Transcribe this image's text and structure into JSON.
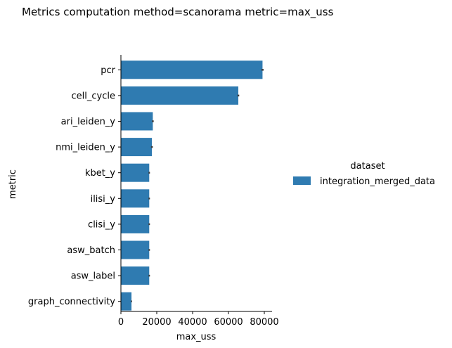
{
  "chart_data": {
    "type": "bar",
    "orientation": "horizontal",
    "title": "Metrics computation method=scanorama metric=max_uss",
    "xlabel": "max_uss",
    "ylabel": "metric",
    "categories": [
      "pcr",
      "cell_cycle",
      "ari_leiden_y",
      "nmi_leiden_y",
      "kbet_y",
      "ilisi_y",
      "clisi_y",
      "asw_batch",
      "asw_label",
      "graph_connectivity"
    ],
    "series": [
      {
        "name": "integration_merged_data",
        "values": [
          79000,
          65500,
          17800,
          17300,
          15800,
          15800,
          15800,
          15800,
          15800,
          5900
        ],
        "errors": [
          600,
          500,
          500,
          500,
          400,
          400,
          400,
          400,
          400,
          300
        ],
        "color": "#2f7bb1"
      }
    ],
    "xlim": [
      0,
      82000
    ],
    "xticks": [
      0,
      20000,
      40000,
      60000,
      80000
    ],
    "xtick_labels": [
      "0",
      "20000",
      "40000",
      "60000",
      "80000"
    ],
    "grid": false,
    "legend": {
      "title": "dataset",
      "placement": "right"
    }
  }
}
